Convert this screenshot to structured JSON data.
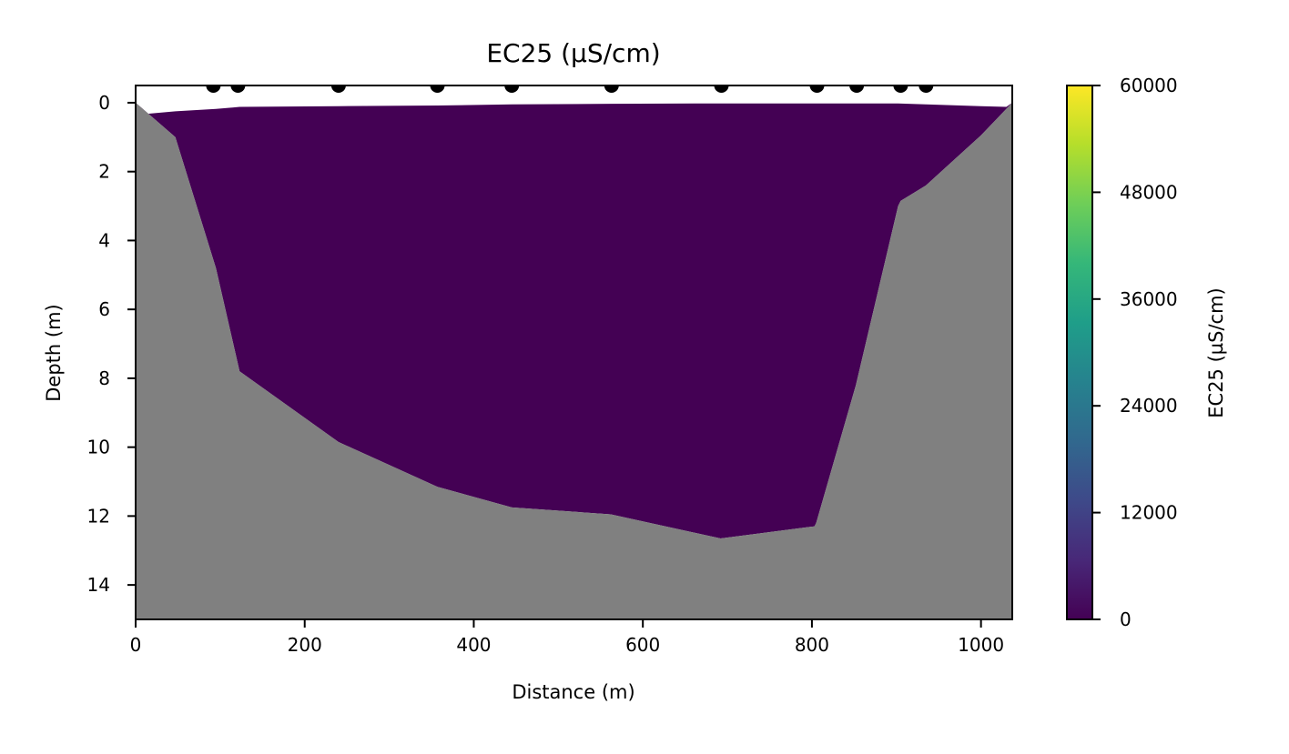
{
  "chart_data": {
    "type": "area",
    "title": "EC25 (µS/cm)",
    "xlabel": "Distance (m)",
    "ylabel": "Depth (m)",
    "xlim": [
      0,
      1037
    ],
    "ylim": [
      15,
      -0.5
    ],
    "y_inverted": true,
    "grid": false,
    "xticks": [
      0,
      200,
      400,
      600,
      800,
      1000
    ],
    "xtick_labels": [
      "0",
      "200",
      "400",
      "600",
      "800",
      "1000"
    ],
    "yticks": [
      0,
      2,
      4,
      6,
      8,
      10,
      12,
      14
    ],
    "ytick_labels": [
      "0",
      "2",
      "4",
      "6",
      "8",
      "10",
      "12",
      "14"
    ],
    "water_fill_color": "#440154",
    "bed_fill_color": "#808080",
    "riverbed_profile": {
      "x": [
        0,
        47,
        95,
        123,
        240,
        357,
        445,
        562,
        692,
        803,
        805,
        852,
        902,
        905,
        935,
        1000,
        1037
      ],
      "depth": [
        0,
        1.0,
        4.8,
        7.8,
        9.85,
        11.15,
        11.75,
        11.95,
        12.65,
        12.3,
        12.2,
        8.2,
        3.0,
        2.85,
        2.4,
        0.95,
        0
      ]
    },
    "water_surface": {
      "x": [
        14,
        47,
        95,
        123,
        240,
        357,
        445,
        562,
        692,
        803,
        852,
        902,
        935,
        1000,
        1030
      ],
      "depth": [
        0.32,
        0.25,
        0.18,
        0.12,
        0.1,
        0.08,
        0.05,
        0.03,
        0.02,
        0.02,
        0.02,
        0.02,
        0.05,
        0.1,
        0.12
      ]
    },
    "stations": {
      "x": [
        92,
        121,
        240,
        357,
        445,
        563,
        693,
        806,
        853,
        905,
        935
      ],
      "depth": [
        -0.5,
        -0.5,
        -0.5,
        -0.5,
        -0.5,
        -0.5,
        -0.5,
        -0.5,
        -0.5,
        -0.5,
        -0.5
      ]
    },
    "colorbar": {
      "label": "EC25 (µS/cm)",
      "min": 0,
      "max": 60000,
      "ticks": [
        0,
        12000,
        24000,
        36000,
        48000,
        60000
      ],
      "tick_labels": [
        "0",
        "12000",
        "24000",
        "36000",
        "48000",
        "60000"
      ],
      "colormap": "viridis",
      "colors": [
        "#440154",
        "#482878",
        "#3e4989",
        "#31688e",
        "#26828e",
        "#1f9e89",
        "#35b779",
        "#6ece58",
        "#b5de2b",
        "#fde725"
      ]
    }
  }
}
